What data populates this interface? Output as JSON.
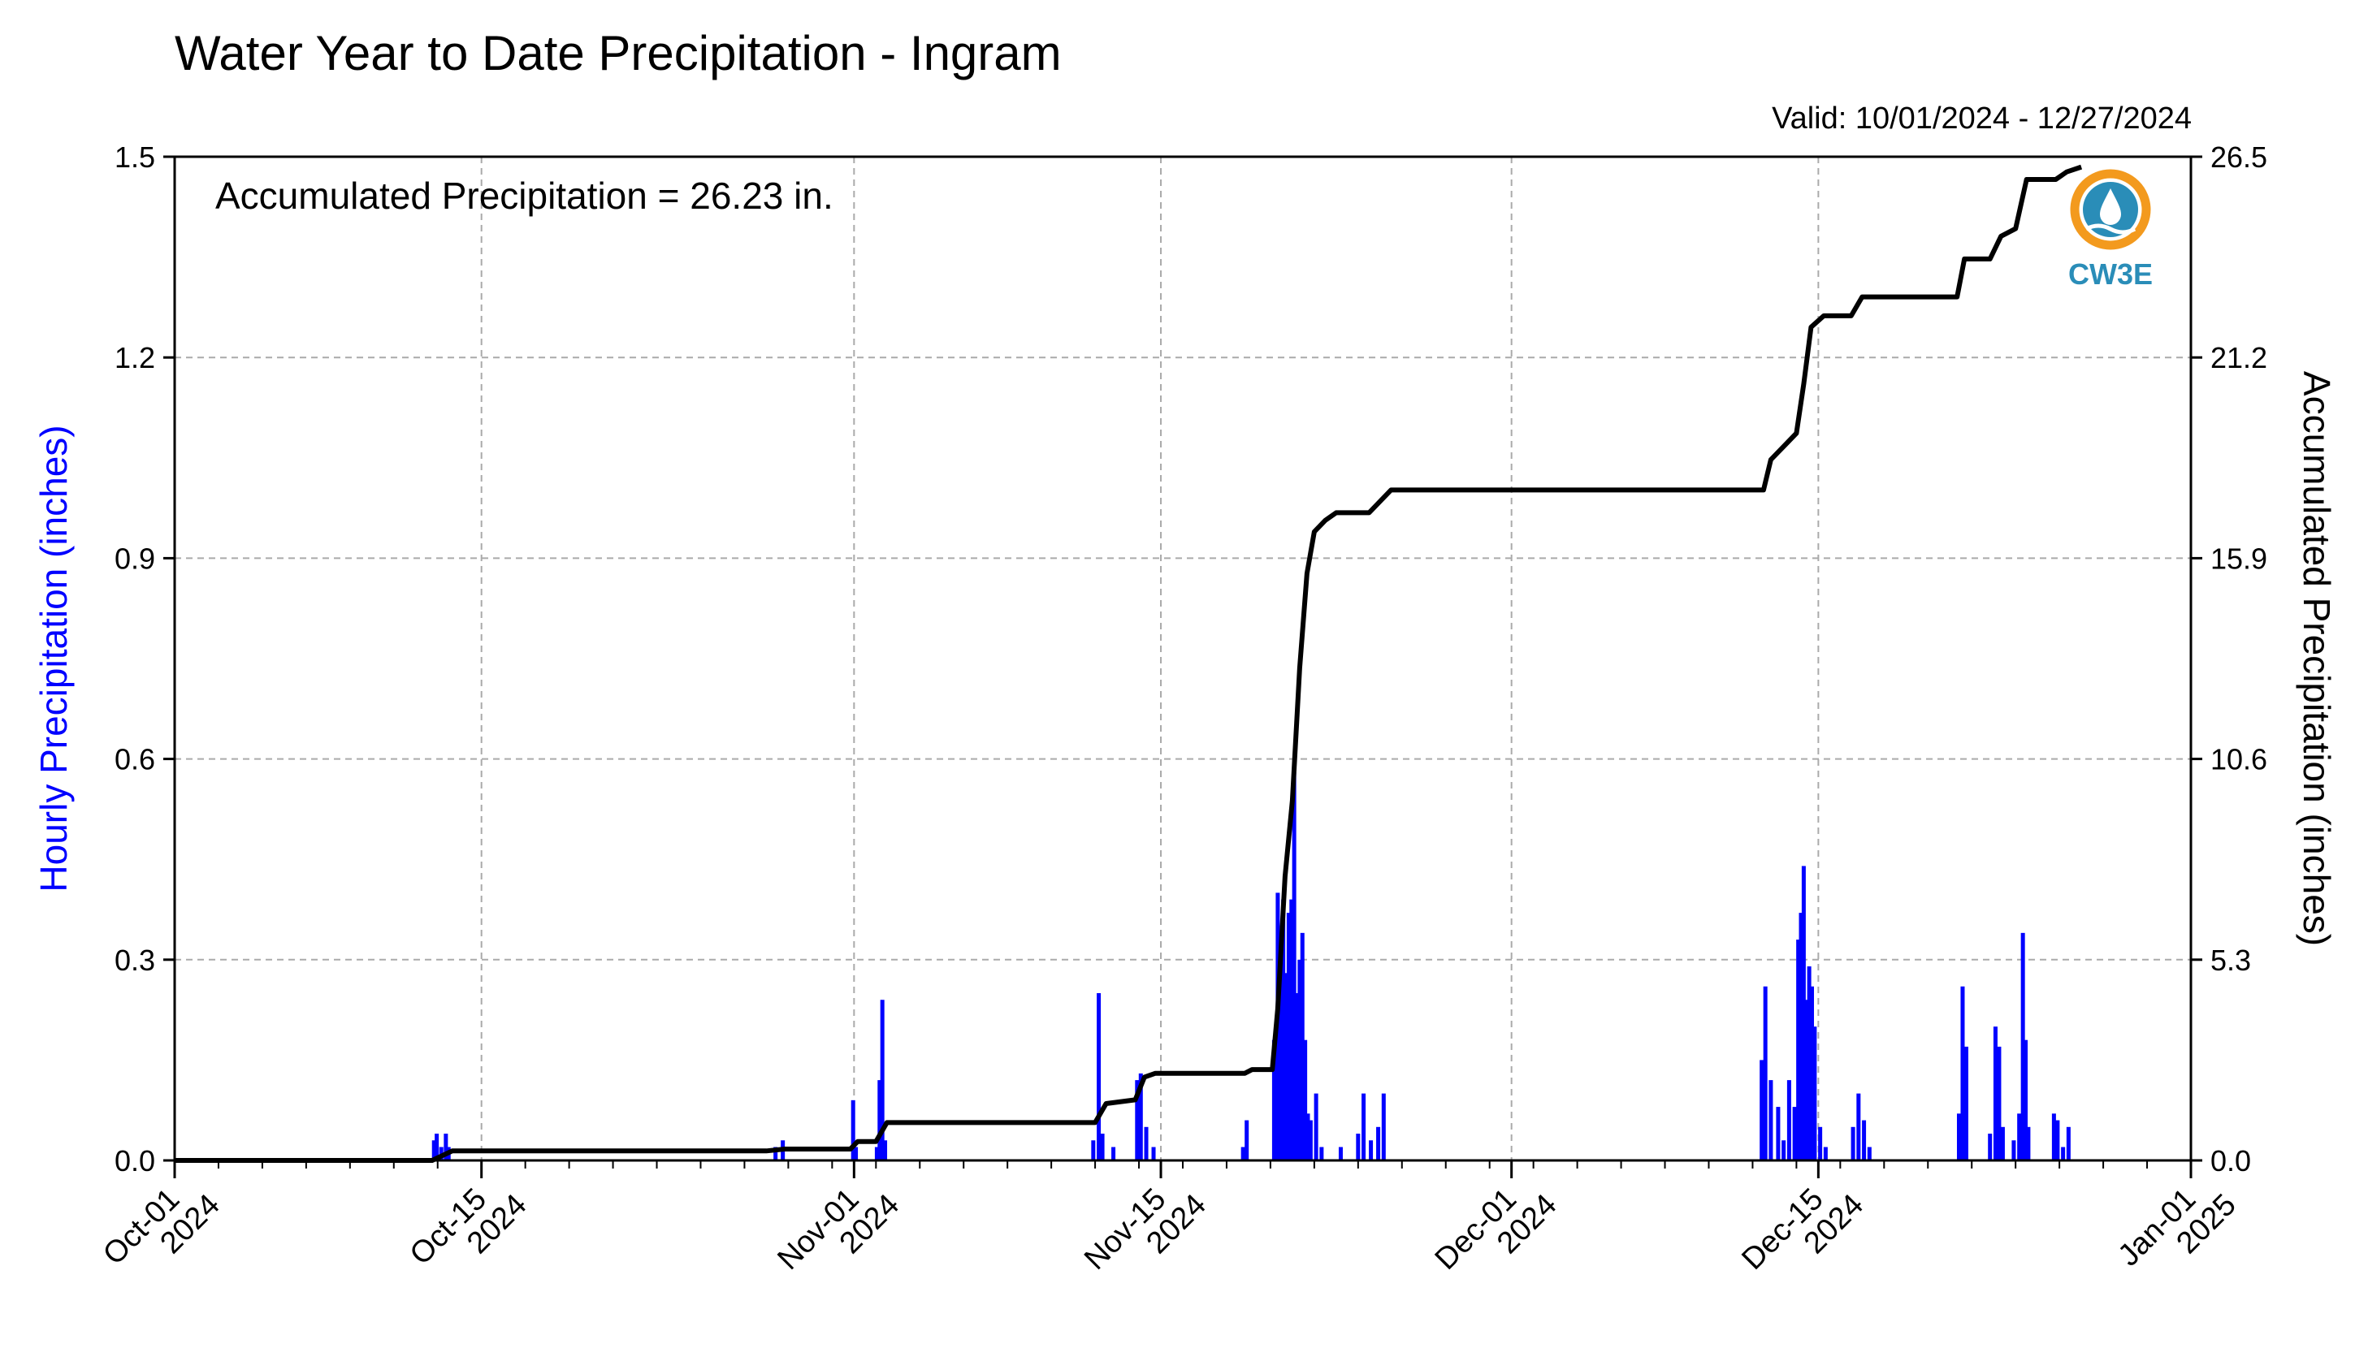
{
  "chart_data": {
    "type": "bar",
    "title": "Water Year to Date Precipitation - Ingram",
    "valid": "Valid: 10/01/2024 - 12/27/2024",
    "annotation": "Accumulated Precipitation = 26.23 in.",
    "ylabel_left": "Hourly Precipitation (inches)",
    "ylabel_right": "Accumulated Precipitation (inches)",
    "logo_text": "CW3E",
    "x_range": [
      "2024-10-01",
      "2025-01-01"
    ],
    "ylim_left": [
      0,
      1.5
    ],
    "ylim_right": [
      0,
      26.5
    ],
    "yticks_left": [
      "0.0",
      "0.3",
      "0.6",
      "0.9",
      "1.2",
      "1.5"
    ],
    "yticks_right": [
      "0.0",
      "5.3",
      "10.6",
      "15.9",
      "21.2",
      "26.5"
    ],
    "xticks": [
      {
        "date": "2024-10-01",
        "line1": "Oct-01",
        "line2": "2024"
      },
      {
        "date": "2024-10-15",
        "line1": "Oct-15",
        "line2": "2024"
      },
      {
        "date": "2024-11-01",
        "line1": "Nov-01",
        "line2": "2024"
      },
      {
        "date": "2024-11-15",
        "line1": "Nov-15",
        "line2": "2024"
      },
      {
        "date": "2024-12-01",
        "line1": "Dec-01",
        "line2": "2024"
      },
      {
        "date": "2024-12-15",
        "line1": "Dec-15",
        "line2": "2024"
      },
      {
        "date": "2025-01-01",
        "line1": "Jan-01",
        "line2": "2025"
      }
    ],
    "grid": true,
    "colors": {
      "hourly": "#0000ff",
      "accumulated": "#000000",
      "logo": "#2a8db8",
      "logo_ring": "#f39a1e"
    },
    "series": [
      {
        "name": "Hourly Precipitation",
        "type": "bar",
        "axis": "left",
        "points": [
          [
            "2024-10-12T20:00",
            0.03
          ],
          [
            "2024-10-12T23:00",
            0.04
          ],
          [
            "2024-10-13T04:00",
            0.02
          ],
          [
            "2024-10-13T09:00",
            0.04
          ],
          [
            "2024-10-13T12:00",
            0.02
          ],
          [
            "2024-10-28T10:00",
            0.02
          ],
          [
            "2024-10-28T18:00",
            0.03
          ],
          [
            "2024-10-31T23:00",
            0.09
          ],
          [
            "2024-11-01T02:00",
            0.02
          ],
          [
            "2024-11-02T01:00",
            0.02
          ],
          [
            "2024-11-02T04:00",
            0.12
          ],
          [
            "2024-11-02T07:00",
            0.24
          ],
          [
            "2024-11-02T10:00",
            0.03
          ],
          [
            "2024-11-11T22:00",
            0.03
          ],
          [
            "2024-11-12T04:00",
            0.25
          ],
          [
            "2024-11-12T08:00",
            0.04
          ],
          [
            "2024-11-12T20:00",
            0.02
          ],
          [
            "2024-11-13T22:00",
            0.12
          ],
          [
            "2024-11-14T02:00",
            0.13
          ],
          [
            "2024-11-14T08:00",
            0.05
          ],
          [
            "2024-11-14T16:00",
            0.02
          ],
          [
            "2024-11-18T18:00",
            0.02
          ],
          [
            "2024-11-18T22:00",
            0.06
          ],
          [
            "2024-11-20T04:00",
            0.18
          ],
          [
            "2024-11-20T08:00",
            0.4
          ],
          [
            "2024-11-20T11:00",
            0.32
          ],
          [
            "2024-11-20T14:00",
            0.39
          ],
          [
            "2024-11-20T17:00",
            0.28
          ],
          [
            "2024-11-20T20:00",
            0.37
          ],
          [
            "2024-11-20T23:00",
            0.39
          ],
          [
            "2024-11-21T02:00",
            0.58
          ],
          [
            "2024-11-21T05:00",
            0.25
          ],
          [
            "2024-11-21T08:00",
            0.3
          ],
          [
            "2024-11-21T11:00",
            0.34
          ],
          [
            "2024-11-21T14:00",
            0.18
          ],
          [
            "2024-11-21T17:00",
            0.07
          ],
          [
            "2024-11-21T20:00",
            0.06
          ],
          [
            "2024-11-22T02:00",
            0.1
          ],
          [
            "2024-11-22T08:00",
            0.02
          ],
          [
            "2024-11-23T05:00",
            0.02
          ],
          [
            "2024-11-24T00:00",
            0.04
          ],
          [
            "2024-11-24T06:00",
            0.1
          ],
          [
            "2024-11-24T14:00",
            0.03
          ],
          [
            "2024-11-24T22:00",
            0.05
          ],
          [
            "2024-11-25T04:00",
            0.1
          ],
          [
            "2024-12-12T10:00",
            0.15
          ],
          [
            "2024-12-12T14:00",
            0.26
          ],
          [
            "2024-12-12T20:00",
            0.12
          ],
          [
            "2024-12-13T04:00",
            0.08
          ],
          [
            "2024-12-13T10:00",
            0.03
          ],
          [
            "2024-12-13T16:00",
            0.12
          ],
          [
            "2024-12-13T22:00",
            0.08
          ],
          [
            "2024-12-14T02:00",
            0.33
          ],
          [
            "2024-12-14T05:00",
            0.37
          ],
          [
            "2024-12-14T08:00",
            0.44
          ],
          [
            "2024-12-14T11:00",
            0.24
          ],
          [
            "2024-12-14T14:00",
            0.29
          ],
          [
            "2024-12-14T17:00",
            0.26
          ],
          [
            "2024-12-14T20:00",
            0.2
          ],
          [
            "2024-12-15T02:00",
            0.05
          ],
          [
            "2024-12-15T08:00",
            0.02
          ],
          [
            "2024-12-16T14:00",
            0.05
          ],
          [
            "2024-12-16T20:00",
            0.1
          ],
          [
            "2024-12-17T02:00",
            0.06
          ],
          [
            "2024-12-17T08:00",
            0.02
          ],
          [
            "2024-12-21T10:00",
            0.07
          ],
          [
            "2024-12-21T14:00",
            0.26
          ],
          [
            "2024-12-21T18:00",
            0.17
          ],
          [
            "2024-12-22T20:00",
            0.04
          ],
          [
            "2024-12-23T02:00",
            0.2
          ],
          [
            "2024-12-23T06:00",
            0.17
          ],
          [
            "2024-12-23T10:00",
            0.05
          ],
          [
            "2024-12-23T22:00",
            0.03
          ],
          [
            "2024-12-24T04:00",
            0.07
          ],
          [
            "2024-12-24T08:00",
            0.34
          ],
          [
            "2024-12-24T11:00",
            0.18
          ],
          [
            "2024-12-24T14:00",
            0.05
          ],
          [
            "2024-12-25T18:00",
            0.07
          ],
          [
            "2024-12-25T22:00",
            0.06
          ],
          [
            "2024-12-26T04:00",
            0.02
          ],
          [
            "2024-12-26T10:00",
            0.05
          ]
        ]
      },
      {
        "name": "Accumulated Precipitation",
        "type": "step-line",
        "axis": "right",
        "points": [
          [
            "2024-10-01T00:00",
            0.0
          ],
          [
            "2024-10-12T18:00",
            0.0
          ],
          [
            "2024-10-13T16:00",
            0.25
          ],
          [
            "2024-10-28T00:00",
            0.25
          ],
          [
            "2024-10-28T20:00",
            0.3
          ],
          [
            "2024-10-31T20:00",
            0.3
          ],
          [
            "2024-11-01T04:00",
            0.5
          ],
          [
            "2024-11-02T00:00",
            0.5
          ],
          [
            "2024-11-02T12:00",
            1.0
          ],
          [
            "2024-11-12T00:00",
            1.0
          ],
          [
            "2024-11-12T12:00",
            1.5
          ],
          [
            "2024-11-13T20:00",
            1.6
          ],
          [
            "2024-11-14T06:00",
            2.2
          ],
          [
            "2024-11-14T18:00",
            2.3
          ],
          [
            "2024-11-18T20:00",
            2.3
          ],
          [
            "2024-11-19T04:00",
            2.4
          ],
          [
            "2024-11-20T02:00",
            2.4
          ],
          [
            "2024-11-20T08:00",
            4.0
          ],
          [
            "2024-11-20T16:00",
            7.5
          ],
          [
            "2024-11-21T00:00",
            9.5
          ],
          [
            "2024-11-21T08:00",
            13.0
          ],
          [
            "2024-11-21T16:00",
            15.5
          ],
          [
            "2024-11-22T00:00",
            16.6
          ],
          [
            "2024-11-22T12:00",
            16.9
          ],
          [
            "2024-11-23T00:00",
            17.1
          ],
          [
            "2024-11-24T12:00",
            17.1
          ],
          [
            "2024-11-25T00:00",
            17.4
          ],
          [
            "2024-11-25T12:00",
            17.7
          ],
          [
            "2024-12-12T12:00",
            17.7
          ],
          [
            "2024-12-12T20:00",
            18.5
          ],
          [
            "2024-12-13T12:00",
            18.9
          ],
          [
            "2024-12-14T00:00",
            19.2
          ],
          [
            "2024-12-14T08:00",
            20.5
          ],
          [
            "2024-12-14T16:00",
            22.0
          ],
          [
            "2024-12-15T06:00",
            22.3
          ],
          [
            "2024-12-16T12:00",
            22.3
          ],
          [
            "2024-12-17T00:00",
            22.8
          ],
          [
            "2024-12-21T08:00",
            22.8
          ],
          [
            "2024-12-21T16:00",
            23.8
          ],
          [
            "2024-12-22T20:00",
            23.8
          ],
          [
            "2024-12-23T08:00",
            24.4
          ],
          [
            "2024-12-24T00:00",
            24.6
          ],
          [
            "2024-12-24T12:00",
            25.9
          ],
          [
            "2024-12-25T20:00",
            25.9
          ],
          [
            "2024-12-26T08:00",
            26.1
          ],
          [
            "2024-12-27T00:00",
            26.23
          ]
        ]
      }
    ]
  }
}
